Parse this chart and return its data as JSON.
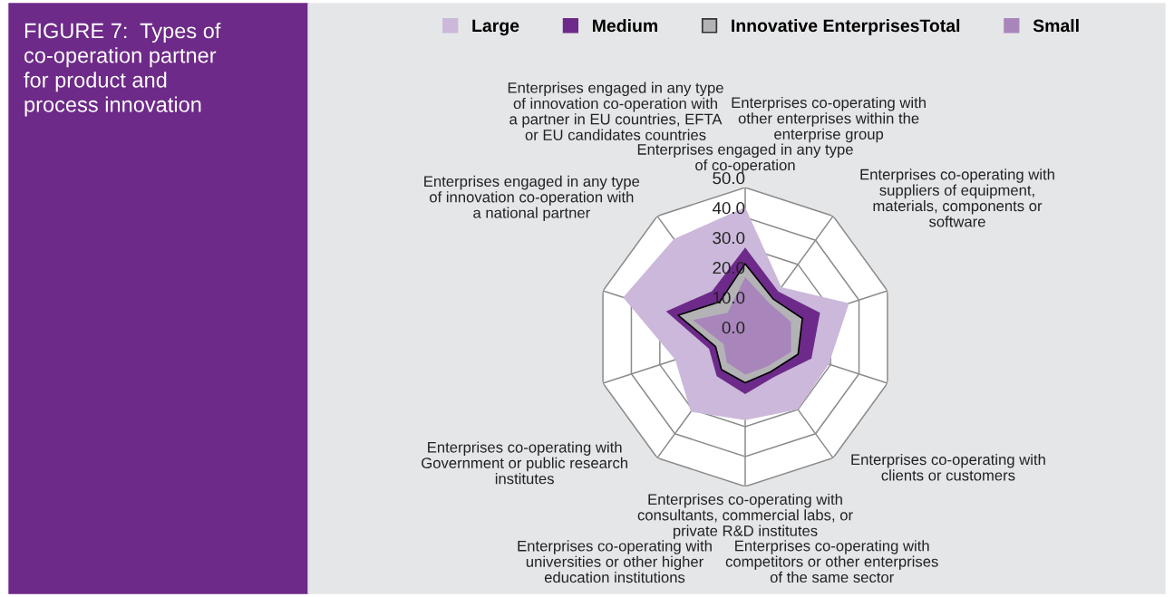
{
  "chart_data": {
    "type": "radar",
    "title": "FIGURE 7:  Types of\nco-operation partner\nfor product and\nprocess innovation",
    "categories": [
      "Enterprises engaged in any type\nof co-operation",
      "Enterprises co-operating with\nother enterprises within the\nenterprise group",
      "Enterprises co-operating with\nsuppliers of equipment,\nmaterials, components or\nsoftware",
      "Enterprises co-operating with\nclients or customers",
      "Enterprises co-operating with\ncompetitors or other enterprises\nof the same sector",
      "Enterprises co-operating with\nconsultants, commercial labs, or\nprivate R&D institutes",
      "Enterprises co-operating with\nuniversities or other higher\neducation institutions",
      "Enterprises co-operating with\nGovernment or public research\ninstitutes",
      "Enterprises engaged in any type\nof innovation co-operation with\na national partner",
      "Enterprises engaged in any type\nof innovation co-operation with\na partner in EU countries, EFTA\nor EU candidates countries"
    ],
    "series": [
      {
        "name": "Large",
        "color": "#cbb8da",
        "values": [
          43.4,
          20.6,
          36.5,
          29.4,
          30.0,
          27.8,
          30.9,
          24.6,
          42.9,
          40.5
        ]
      },
      {
        "name": "Medium",
        "color": "#6d2a8a",
        "values": [
          29.9,
          18.8,
          26.3,
          23.3,
          16.5,
          19.1,
          16.2,
          12.7,
          27.8,
          18.9
        ]
      },
      {
        "name": "Innovative EnterprisesTotal",
        "color": "#b3b3b5",
        "values": [
          24.5,
          15.8,
          20.1,
          18.6,
          14.4,
          15.3,
          13.5,
          10.4,
          23.6,
          14.5
        ]
      },
      {
        "name": "Small",
        "color": "#a886bb",
        "values": [
          20.0,
          13.9,
          16.1,
          16.1,
          12.3,
          12.6,
          10.5,
          7.6,
          18.4,
          10.0
        ]
      }
    ],
    "ylim": [
      0,
      50
    ],
    "yticks": [
      {
        "value": 0,
        "label": "0.0"
      },
      {
        "value": 10,
        "label": "10.0"
      },
      {
        "value": 20,
        "label": "20.0"
      },
      {
        "value": 30,
        "label": "30.0"
      },
      {
        "value": 40,
        "label": "40.0"
      },
      {
        "value": 50,
        "label": "50.0"
      }
    ],
    "grid": true,
    "legend": "top"
  }
}
